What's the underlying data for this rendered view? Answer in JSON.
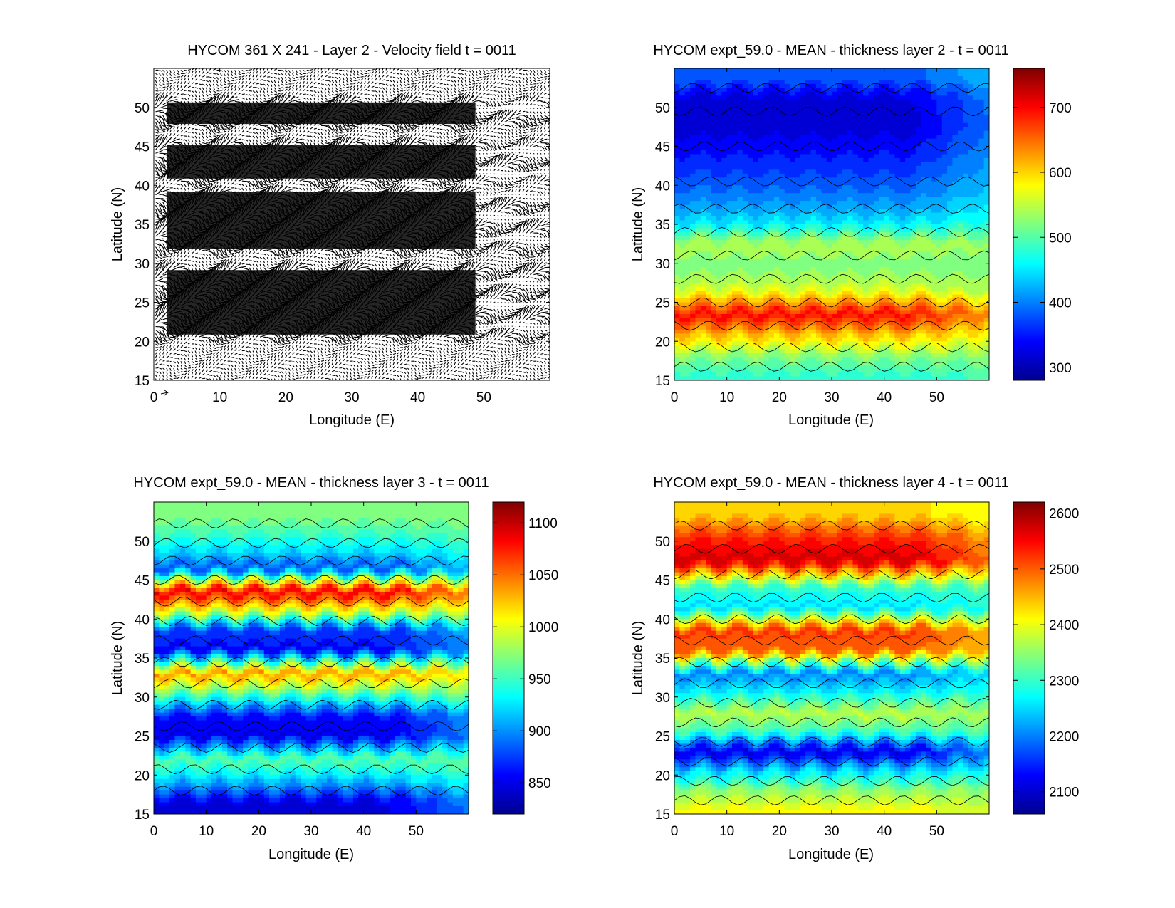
{
  "chart_data": [
    {
      "id": "vel",
      "type": "quiver",
      "title": "HYCOM 361 X 241 - Layer 2 - Velocity field  t = 0011",
      "xlabel": "Longitude (E)",
      "ylabel": "Latitude (N)",
      "xlim": [
        0,
        60
      ],
      "ylim": [
        15,
        55
      ],
      "xticks": [
        0,
        10,
        20,
        30,
        40,
        50
      ],
      "yticks": [
        15,
        20,
        25,
        30,
        35,
        40,
        45,
        50
      ],
      "note": "Dense black velocity arrows covering the domain; reference arrow at origin"
    },
    {
      "id": "l2",
      "type": "contourf",
      "title": "HYCOM expt_59.0 - MEAN - thickness layer 2 - t = 0011",
      "xlabel": "Longitude (E)",
      "ylabel": "Latitude (N)",
      "xlim": [
        0,
        60
      ],
      "ylim": [
        15,
        55
      ],
      "xticks": [
        0,
        10,
        20,
        30,
        40,
        50
      ],
      "yticks": [
        15,
        20,
        25,
        30,
        35,
        40,
        45,
        50
      ],
      "clim": [
        280,
        760
      ],
      "cbticks": [
        300,
        400,
        500,
        600,
        700
      ],
      "bands": [
        {
          "lat": 53.5,
          "value": 380
        },
        {
          "lat": 51.5,
          "value": 330
        },
        {
          "lat": 47.5,
          "value": 320
        },
        {
          "lat": 42.5,
          "value": 360
        },
        {
          "lat": 38.5,
          "value": 400
        },
        {
          "lat": 35.5,
          "value": 440
        },
        {
          "lat": 32.5,
          "value": 540
        },
        {
          "lat": 29.5,
          "value": 520
        },
        {
          "lat": 26.5,
          "value": 560
        },
        {
          "lat": 23.5,
          "value": 700
        },
        {
          "lat": 20.5,
          "value": 600
        },
        {
          "lat": 18.0,
          "value": 520
        },
        {
          "lat": 15.5,
          "value": 480
        }
      ]
    },
    {
      "id": "l3",
      "type": "contourf",
      "title": "HYCOM expt_59.0 - MEAN - thickness layer 3 - t = 0011",
      "xlabel": "Longitude (E)",
      "ylabel": "Latitude (N)",
      "xlim": [
        0,
        60
      ],
      "ylim": [
        15,
        55
      ],
      "xticks": [
        0,
        10,
        20,
        30,
        40,
        50
      ],
      "yticks": [
        15,
        20,
        25,
        30,
        35,
        40,
        45,
        50
      ],
      "clim": [
        820,
        1120
      ],
      "cbticks": [
        850,
        900,
        950,
        1000,
        1050,
        1100
      ],
      "bands": [
        {
          "lat": 53.5,
          "value": 975
        },
        {
          "lat": 51.0,
          "value": 950
        },
        {
          "lat": 48.5,
          "value": 920
        },
        {
          "lat": 46.5,
          "value": 880
        },
        {
          "lat": 43.5,
          "value": 1090
        },
        {
          "lat": 41.0,
          "value": 1000
        },
        {
          "lat": 38.5,
          "value": 870
        },
        {
          "lat": 36.0,
          "value": 860
        },
        {
          "lat": 33.0,
          "value": 1040
        },
        {
          "lat": 30.5,
          "value": 960
        },
        {
          "lat": 27.5,
          "value": 860
        },
        {
          "lat": 25.0,
          "value": 850
        },
        {
          "lat": 22.0,
          "value": 960
        },
        {
          "lat": 19.5,
          "value": 920
        },
        {
          "lat": 16.5,
          "value": 850
        }
      ]
    },
    {
      "id": "l4",
      "type": "contourf",
      "title": "HYCOM expt_59.0 - MEAN - thickness layer 4 - t = 0011",
      "xlabel": "Longitude (E)",
      "ylabel": "Latitude (N)",
      "xlim": [
        0,
        60
      ],
      "ylim": [
        15,
        55
      ],
      "xticks": [
        0,
        10,
        20,
        30,
        40,
        50
      ],
      "yticks": [
        15,
        20,
        25,
        30,
        35,
        40,
        45,
        50
      ],
      "clim": [
        2060,
        2620
      ],
      "cbticks": [
        2100,
        2200,
        2300,
        2400,
        2500,
        2600
      ],
      "bands": [
        {
          "lat": 53.5,
          "value": 2430
        },
        {
          "lat": 50.5,
          "value": 2530
        },
        {
          "lat": 47.5,
          "value": 2580
        },
        {
          "lat": 44.0,
          "value": 2300
        },
        {
          "lat": 41.5,
          "value": 2250
        },
        {
          "lat": 38.5,
          "value": 2520
        },
        {
          "lat": 36.0,
          "value": 2500
        },
        {
          "lat": 33.0,
          "value": 2200
        },
        {
          "lat": 30.5,
          "value": 2270
        },
        {
          "lat": 28.0,
          "value": 2380
        },
        {
          "lat": 25.5,
          "value": 2300
        },
        {
          "lat": 23.0,
          "value": 2110
        },
        {
          "lat": 20.5,
          "value": 2250
        },
        {
          "lat": 18.0,
          "value": 2350
        },
        {
          "lat": 15.5,
          "value": 2410
        }
      ]
    }
  ]
}
